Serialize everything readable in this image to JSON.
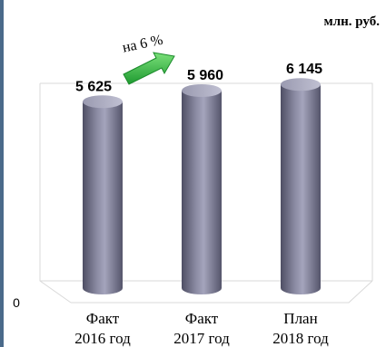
{
  "chart_data": {
    "type": "bar",
    "unit_label": "млн. руб.",
    "zero_label": "0",
    "categories": [
      [
        "Факт",
        "2016 год"
      ],
      [
        "Факт",
        "2017 год"
      ],
      [
        "План",
        "2018 год"
      ]
    ],
    "values": [
      5625,
      5960,
      6145
    ],
    "value_labels": [
      "5 625",
      "5 960",
      "6 145"
    ],
    "annotation": "на 6 %",
    "ylim": [
      0,
      6800
    ],
    "grid": false,
    "colors": {
      "bar": "#7a7a92",
      "bar_dark": "#4e4e64",
      "bar_light": "#a4a4bc",
      "arrow": "#39b54a",
      "frame": "#d9d9d9",
      "left_border": "#4a6a8a"
    }
  }
}
